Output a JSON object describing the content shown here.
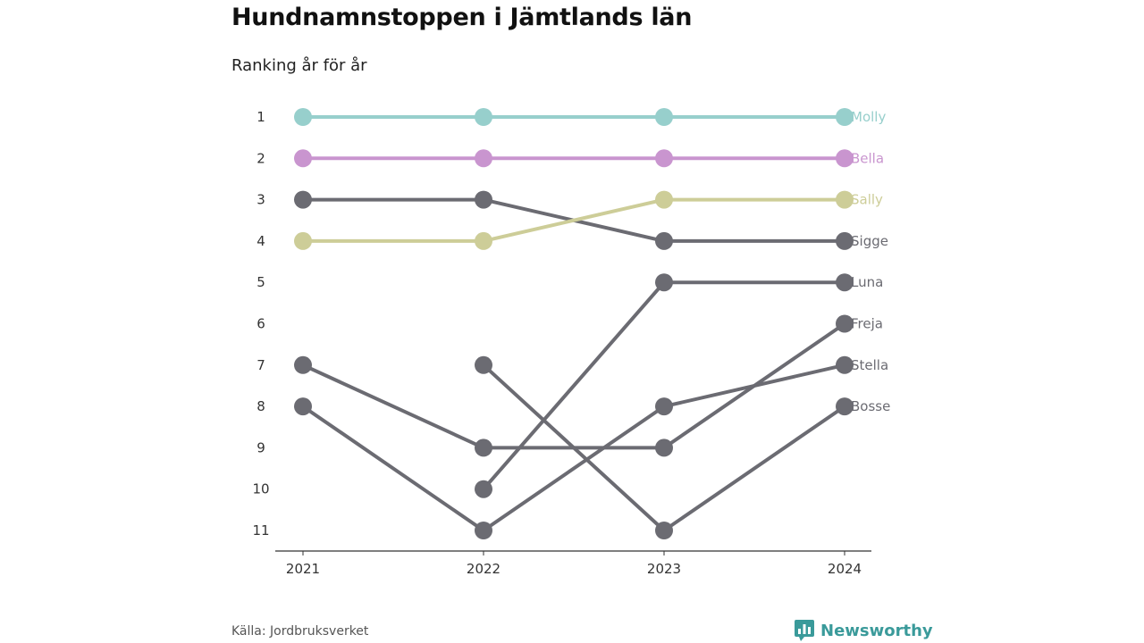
{
  "title": "Hundnamnstoppen i Jämtlands län",
  "subtitle": "Ranking år för år",
  "source": "Källa: Jordbruksverket",
  "brand": {
    "name": "Newsworthy",
    "icon": "newsworthy-logo-icon",
    "color": "#3a9a9a"
  },
  "chart_data": {
    "type": "line",
    "chart_subtype": "bump",
    "x": [
      2021,
      2022,
      2023,
      2024
    ],
    "y_axis": {
      "inverted": true,
      "ticks": [
        1,
        2,
        3,
        4,
        5,
        6,
        7,
        8,
        9,
        10,
        11
      ],
      "ylim": [
        11,
        1
      ]
    },
    "grid": false,
    "legend": "direct-labels-right",
    "default_color": "#6b6b72",
    "series": [
      {
        "name": "Molly",
        "values": [
          1,
          1,
          1,
          1
        ],
        "color": "#97cfcc"
      },
      {
        "name": "Bella",
        "values": [
          2,
          2,
          2,
          2
        ],
        "color": "#c995cf"
      },
      {
        "name": "Sally",
        "values": [
          4,
          4,
          3,
          3
        ],
        "color": "#cdcd98"
      },
      {
        "name": "Sigge",
        "values": [
          3,
          3,
          4,
          4
        ],
        "color": "#6b6b72"
      },
      {
        "name": "Luna",
        "values": [
          null,
          10,
          5,
          5
        ],
        "color": "#6b6b72"
      },
      {
        "name": "Freja",
        "values": [
          7,
          9,
          9,
          6
        ],
        "color": "#6b6b72"
      },
      {
        "name": "Stella",
        "values": [
          8,
          11,
          8,
          7
        ],
        "color": "#6b6b72"
      },
      {
        "name": "Bosse",
        "values": [
          null,
          7,
          11,
          8
        ],
        "color": "#6b6b72"
      }
    ]
  }
}
